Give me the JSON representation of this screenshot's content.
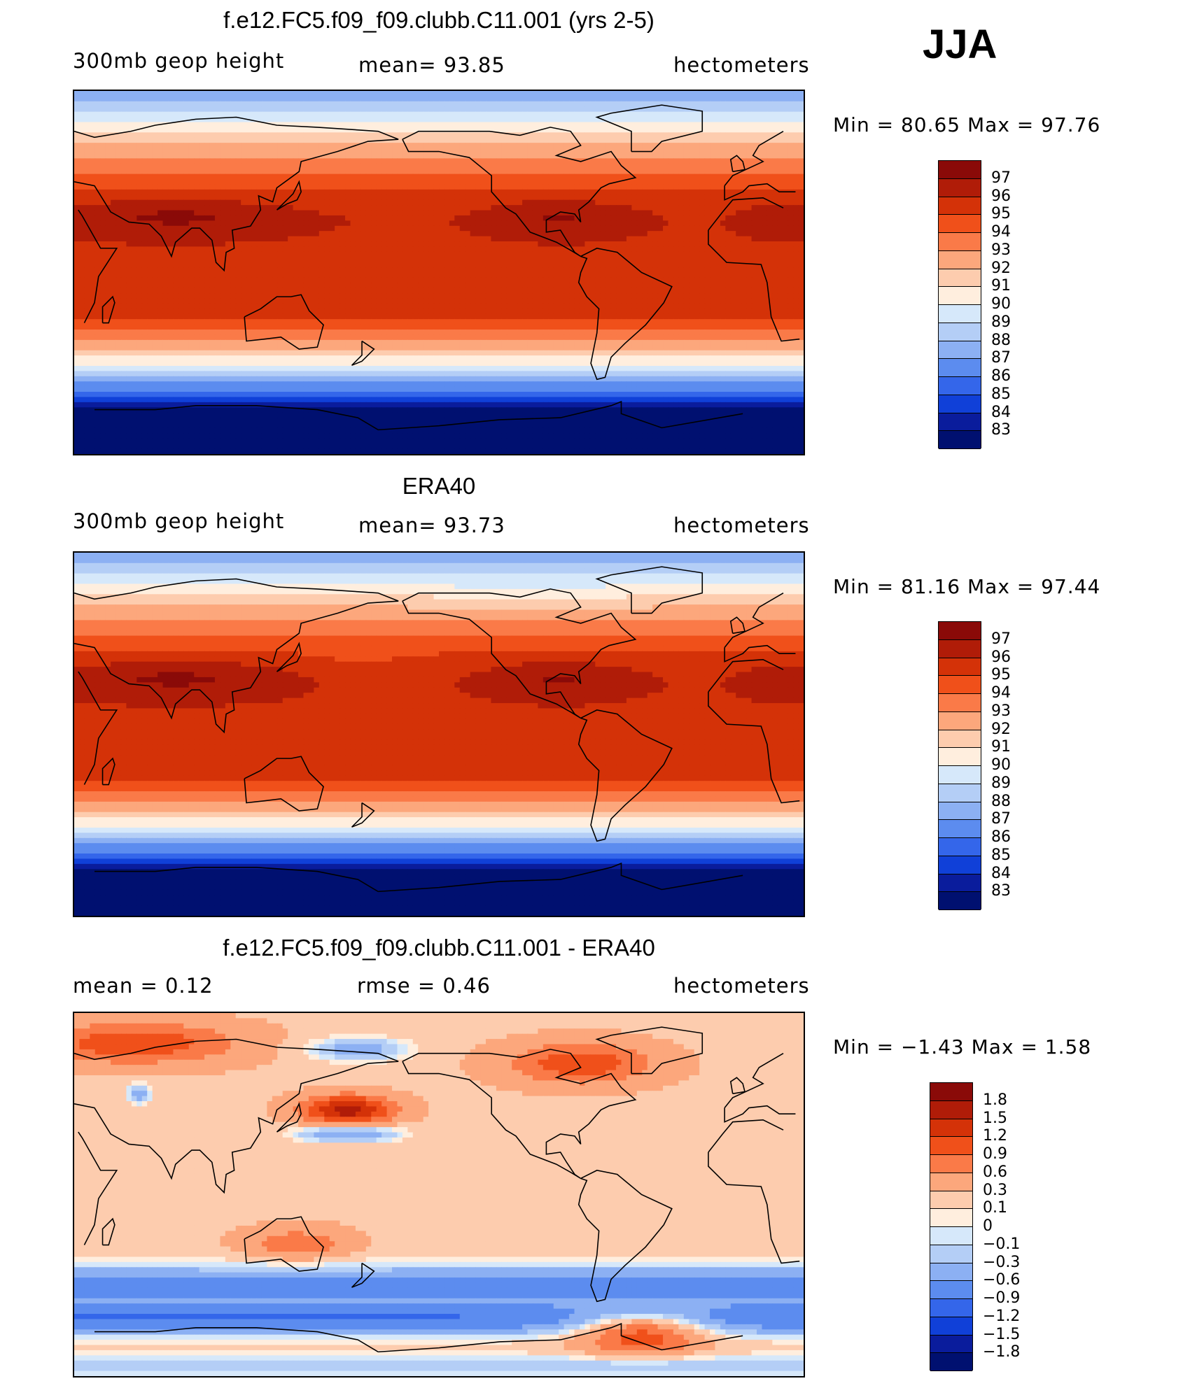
{
  "season": "JJA",
  "panels": [
    {
      "id": "model",
      "title": "f.e12.FC5.f09_f09.clubb.C11.001 (yrs 2-5)",
      "left_label": "300mb geop height",
      "center_label": "mean=  93.85",
      "right_label": "hectometers",
      "minmax": "Min =   80.65 Max =   97.76",
      "colorbar_labels": [
        "97",
        "96",
        "95",
        "94",
        "93",
        "92",
        "91",
        "90",
        "89",
        "88",
        "87",
        "86",
        "85",
        "84",
        "83"
      ],
      "colorbar_colors": [
        "#8a0a08",
        "#b01c08",
        "#d43208",
        "#f0501a",
        "#fa7a48",
        "#fca77c",
        "#fdccae",
        "#ffeede",
        "#d6e8fa",
        "#b4cef6",
        "#8cb0f3",
        "#5c8cef",
        "#3466ea",
        "#1040d8",
        "#0a1c9c",
        "#001070"
      ],
      "field": {
        "type": "absolute",
        "model": "model"
      }
    },
    {
      "id": "obs",
      "title": "ERA40",
      "left_label": "300mb geop height",
      "center_label": "mean=  93.73",
      "right_label": "hectometers",
      "minmax": "Min =   81.16 Max =   97.44",
      "colorbar_labels": [
        "97",
        "96",
        "95",
        "94",
        "93",
        "92",
        "91",
        "90",
        "89",
        "88",
        "87",
        "86",
        "85",
        "84",
        "83"
      ],
      "colorbar_colors": [
        "#8a0a08",
        "#b01c08",
        "#d43208",
        "#f0501a",
        "#fa7a48",
        "#fca77c",
        "#fdccae",
        "#ffeede",
        "#d6e8fa",
        "#b4cef6",
        "#8cb0f3",
        "#5c8cef",
        "#3466ea",
        "#1040d8",
        "#0a1c9c",
        "#001070"
      ],
      "field": {
        "type": "absolute",
        "model": "obs"
      }
    },
    {
      "id": "diff",
      "title": "f.e12.FC5.f09_f09.clubb.C11.001 - ERA40",
      "left_label": "mean =    0.12",
      "center_label": "rmse =    0.46",
      "right_label": "hectometers",
      "minmax": "Min =   −1.43 Max =     1.58",
      "colorbar_labels": [
        "1.8",
        "1.5",
        "1.2",
        "0.9",
        "0.6",
        "0.3",
        "0.1",
        "0",
        "−0.1",
        "−0.3",
        "−0.6",
        "−0.9",
        "−1.2",
        "−1.5",
        "−1.8"
      ],
      "colorbar_colors": [
        "#8a0a08",
        "#b01c08",
        "#d43208",
        "#f0501a",
        "#fa7a48",
        "#fca77c",
        "#fdccae",
        "#ffeede",
        "#d6e8fa",
        "#b4cef6",
        "#8cb0f3",
        "#5c8cef",
        "#3466ea",
        "#1040d8",
        "#0a1c9c",
        "#001070"
      ],
      "field": {
        "type": "difference"
      }
    }
  ]
}
